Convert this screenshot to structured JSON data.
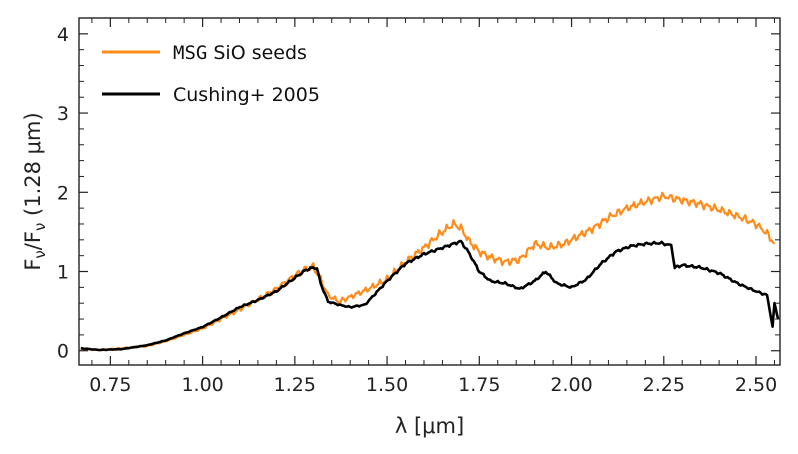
{
  "chart_data": {
    "type": "line",
    "xlabel": "λ [μm]",
    "ylabel": "F_ν/F_ν (1.28 μm)",
    "ylabel_parts": {
      "main": "F",
      "sub1": "ν",
      "slash": "/F",
      "sub2": "ν",
      "paren": " (1.28 μm)"
    },
    "xlim": [
      0.665,
      2.565
    ],
    "ylim": [
      -0.18,
      4.2
    ],
    "xticks": [
      0.75,
      1.0,
      1.25,
      1.5,
      1.75,
      2.0,
      2.25,
      2.5
    ],
    "xtick_labels": [
      "0.75",
      "1.00",
      "1.25",
      "1.50",
      "1.75",
      "2.00",
      "2.25",
      "2.50"
    ],
    "yticks": [
      0,
      1,
      2,
      3,
      4
    ],
    "ytick_labels": [
      "0",
      "1",
      "2",
      "3",
      "4"
    ],
    "legend": [
      {
        "label_mono": "MSG",
        "label": " SiO seeds",
        "color": "#ff8c1a"
      },
      {
        "label_mono": "",
        "label": "Cushing+ 2005",
        "color": "#000000"
      }
    ],
    "legend_placement": "top-left",
    "series": [
      {
        "name": "MSG SiO seeds",
        "color": "#ff8c1a",
        "x": [
          0.67,
          0.72,
          0.78,
          0.85,
          0.9,
          0.95,
          1.0,
          1.05,
          1.1,
          1.15,
          1.2,
          1.25,
          1.28,
          1.3,
          1.32,
          1.34,
          1.37,
          1.4,
          1.45,
          1.5,
          1.55,
          1.6,
          1.65,
          1.68,
          1.7,
          1.72,
          1.75,
          1.78,
          1.82,
          1.86,
          1.9,
          1.94,
          1.98,
          2.02,
          2.06,
          2.1,
          2.15,
          2.2,
          2.25,
          2.28,
          2.3,
          2.35,
          2.4,
          2.45,
          2.5,
          2.53,
          2.55
        ],
        "y": [
          0.02,
          0.01,
          0.03,
          0.06,
          0.12,
          0.2,
          0.28,
          0.4,
          0.52,
          0.65,
          0.78,
          0.95,
          1.03,
          1.06,
          0.9,
          0.7,
          0.62,
          0.68,
          0.78,
          0.9,
          1.12,
          1.3,
          1.5,
          1.6,
          1.55,
          1.4,
          1.25,
          1.18,
          1.12,
          1.15,
          1.35,
          1.3,
          1.35,
          1.45,
          1.55,
          1.68,
          1.8,
          1.88,
          1.95,
          1.92,
          1.9,
          1.85,
          1.78,
          1.7,
          1.6,
          1.48,
          1.35
        ]
      },
      {
        "name": "Cushing+ 2005",
        "color": "#000000",
        "x": [
          0.67,
          0.72,
          0.78,
          0.85,
          0.9,
          0.95,
          1.0,
          1.05,
          1.1,
          1.15,
          1.2,
          1.25,
          1.28,
          1.3,
          1.31,
          1.32,
          1.34,
          1.37,
          1.4,
          1.44,
          1.5,
          1.55,
          1.6,
          1.65,
          1.68,
          1.7,
          1.72,
          1.75,
          1.78,
          1.82,
          1.86,
          1.9,
          1.93,
          1.96,
          2.0,
          2.04,
          2.08,
          2.12,
          2.16,
          2.2,
          2.24,
          2.27,
          2.28,
          2.3,
          2.35,
          2.4,
          2.45,
          2.5,
          2.53,
          2.545,
          2.55,
          2.56
        ],
        "y": [
          0.03,
          0.01,
          0.02,
          0.07,
          0.13,
          0.22,
          0.3,
          0.42,
          0.55,
          0.64,
          0.75,
          0.92,
          1.02,
          1.05,
          1.04,
          0.85,
          0.62,
          0.58,
          0.55,
          0.58,
          0.88,
          1.1,
          1.22,
          1.3,
          1.35,
          1.38,
          1.25,
          1.0,
          0.88,
          0.85,
          0.78,
          0.88,
          1.0,
          0.85,
          0.8,
          0.9,
          1.1,
          1.25,
          1.32,
          1.35,
          1.36,
          1.33,
          1.05,
          1.08,
          1.05,
          0.98,
          0.85,
          0.75,
          0.7,
          0.3,
          0.6,
          0.4
        ]
      }
    ]
  }
}
